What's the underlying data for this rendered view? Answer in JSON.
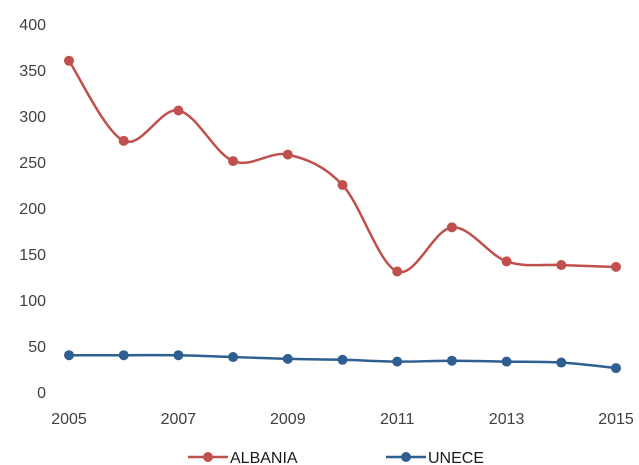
{
  "chart_data": {
    "type": "line",
    "title": "",
    "xlabel": "",
    "ylabel": "",
    "x": [
      2005,
      2006,
      2007,
      2008,
      2009,
      2010,
      2011,
      2012,
      2013,
      2014,
      2015
    ],
    "x_tick_labels": [
      "2005",
      "2007",
      "2009",
      "2011",
      "2013",
      "2015"
    ],
    "y_tick_labels": [
      "0",
      "50",
      "100",
      "150",
      "200",
      "250",
      "300",
      "350",
      "400"
    ],
    "ylim": [
      0,
      400
    ],
    "xlim": [
      2005,
      2015
    ],
    "grid": false,
    "legend_position": "bottom",
    "smooth": true,
    "series": [
      {
        "name": "ALBANIA",
        "color": "#c0504d",
        "values": [
          360,
          273,
          306,
          251,
          258,
          225,
          131,
          179,
          142,
          138,
          136
        ]
      },
      {
        "name": "UNECE",
        "color": "#2f5e91",
        "values": [
          40,
          40,
          40,
          38,
          36,
          35,
          33,
          34,
          33,
          32,
          26
        ]
      }
    ]
  }
}
